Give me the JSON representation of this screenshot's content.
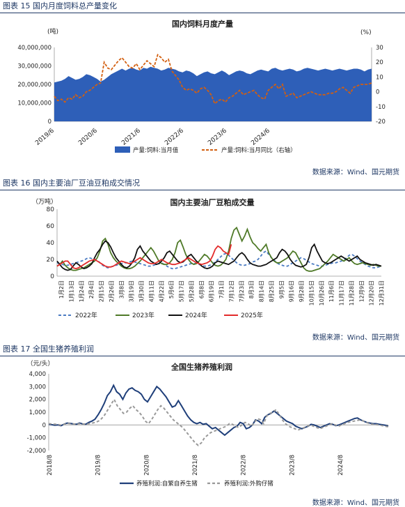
{
  "sections": [
    {
      "title": "图表 15 国内月度饲料总产量变化",
      "source": "数据来源：Wind、国元期货"
    },
    {
      "title": "图表 16 国内主要油厂豆油豆粕成交情况",
      "source": "数据来源：Wind、国元期货"
    },
    {
      "title": "图表 17 全国生猪养殖利润",
      "source": "数据来源：Wind、国元期货"
    }
  ],
  "chart_data": [
    {
      "type": "area",
      "title": "国内饲料月度产量",
      "ylabel": "(吨)",
      "y2label": "(%)",
      "ylim": [
        0,
        40000000
      ],
      "y2lim": [
        -20,
        30
      ],
      "yticks": [
        "0",
        "10,000,000",
        "20,000,000",
        "30,000,000",
        "40,000,000"
      ],
      "y2ticks": [
        "-20",
        "-10",
        "0",
        "10",
        "20",
        "30"
      ],
      "xticks": [
        "2019/6",
        "2020/6",
        "2021/6",
        "2022/6",
        "2023/6",
        "2024/6"
      ],
      "x_start": "2019/6",
      "series": [
        {
          "name": "产量:饲料:当月值",
          "kind": "area",
          "color": "#2e5fb8",
          "values": [
            21000000,
            21500000,
            22000000,
            23000000,
            24500000,
            23500000,
            22500000,
            23000000,
            24000000,
            25500000,
            25000000,
            24000000,
            23000000,
            21500000,
            22500000,
            24000000,
            25500000,
            26500000,
            27500000,
            28500000,
            27500000,
            28500000,
            29000000,
            28000000,
            27500000,
            29000000,
            28500000,
            29500000,
            29000000,
            28500000,
            27500000,
            28000000,
            29000000,
            28500000,
            28000000,
            27000000,
            26500000,
            27500000,
            27000000,
            26000000,
            24500000,
            25500000,
            26500000,
            27000000,
            26000000,
            25500000,
            26500000,
            27500000,
            26500000,
            25000000,
            26000000,
            27000000,
            27500000,
            27000000,
            26000000,
            25500000,
            26500000,
            27500000,
            28000000,
            27500000,
            27000000,
            28500000,
            29000000,
            28000000,
            27500000,
            28000000,
            28500000,
            28000000,
            27000000,
            27500000,
            28500000,
            29000000,
            28500000,
            28000000,
            27500000,
            28000000,
            28500000,
            28000000,
            27500000,
            28000000,
            28500000,
            28000000,
            27500000,
            28000000,
            28500000,
            28500000,
            28000000,
            27000000,
            28000000,
            28500000
          ]
        },
        {
          "name": "产量:饲料:当月同比（右轴）",
          "kind": "line",
          "color": "#d35f10",
          "values": [
            -3,
            -6,
            -5,
            -7,
            -4,
            -5,
            -2,
            -4,
            -3,
            0,
            1,
            3,
            5,
            6,
            20,
            16,
            15,
            18,
            21,
            23,
            20,
            17,
            16,
            19,
            15,
            18,
            21,
            19,
            17,
            25,
            23,
            20,
            22,
            14,
            11,
            8,
            3,
            1,
            2,
            1,
            -1,
            2,
            3,
            1,
            -2,
            -8,
            -6,
            -5,
            -7,
            -4,
            -3,
            -1,
            1,
            -2,
            -1,
            0,
            1,
            -2,
            -4,
            -5,
            1,
            3,
            5,
            2,
            5,
            -3,
            -2,
            -1,
            -4,
            -3,
            -2,
            -1,
            0,
            -1,
            -2,
            -2,
            -2,
            -1,
            -1,
            0,
            2,
            3,
            1,
            -1,
            3,
            4,
            5,
            5,
            5,
            6
          ]
        }
      ],
      "legend_position": "bottom"
    },
    {
      "type": "line",
      "title": "国内主要油厂豆粕成交量",
      "ylabel": "（万吨）",
      "ylim": [
        0,
        80
      ],
      "yticks": [
        "0",
        "20",
        "40",
        "60",
        "80"
      ],
      "xticks": [
        "1月2日",
        "1月13日",
        "1月24日",
        "2月4日",
        "2月15日",
        "2月26日",
        "3月8日",
        "3月19日",
        "3月30日",
        "4月11日",
        "4月22日",
        "5月6日",
        "5月17日",
        "5月28日",
        "6月8日",
        "6月19日",
        "7月1日",
        "7月12日",
        "7月23日",
        "8月3日",
        "8月14日",
        "8月25日",
        "9月5日",
        "9月16日",
        "9月28日",
        "10月15日",
        "10月26日",
        "11月6日",
        "11月17日",
        "11月28日",
        "12月9日",
        "12月20日",
        "12月31日"
      ],
      "series": [
        {
          "name": "2022年",
          "color": "#4a7bc2",
          "dash": "4,3",
          "values": [
            16,
            15,
            14,
            13,
            13,
            14,
            15,
            16,
            17,
            18,
            19,
            21,
            22,
            21,
            20,
            19,
            16,
            13,
            11,
            10,
            11,
            12,
            13,
            14,
            15,
            16,
            16,
            17,
            18,
            17,
            16,
            15,
            14,
            13,
            12,
            12,
            13,
            14,
            15,
            16,
            14,
            12,
            10,
            9,
            9,
            10,
            11,
            12,
            13,
            14,
            15,
            15,
            15,
            14,
            13,
            12,
            12,
            13,
            15,
            17,
            20,
            23,
            26,
            27,
            25,
            22,
            19,
            16,
            14,
            13,
            13,
            14,
            15,
            17,
            18,
            20,
            24,
            28,
            30,
            26,
            22,
            19,
            16,
            14,
            13,
            12,
            12,
            14,
            16,
            18,
            20,
            22,
            21,
            19,
            17,
            15,
            14,
            13,
            12,
            12,
            13,
            14,
            15,
            16,
            16,
            17,
            18,
            19,
            22,
            25,
            26,
            24,
            21,
            18,
            16,
            14,
            12,
            11,
            10,
            10,
            11,
            12
          ]
        },
        {
          "name": "2023年",
          "color": "#4f7a28",
          "values": [
            12,
            14,
            18,
            13,
            10,
            8,
            7,
            7,
            8,
            9,
            10,
            12,
            14,
            16,
            18,
            22,
            30,
            42,
            45,
            38,
            28,
            22,
            18,
            15,
            12,
            10,
            9,
            9,
            10,
            12,
            15,
            18,
            22,
            26,
            30,
            34,
            30,
            24,
            18,
            15,
            14,
            14,
            16,
            20,
            28,
            40,
            43,
            35,
            26,
            20,
            16,
            14,
            15,
            18,
            22,
            26,
            24,
            20,
            16,
            13,
            12,
            13,
            16,
            20,
            30,
            45,
            55,
            58,
            50,
            42,
            48,
            56,
            47,
            40,
            37,
            33,
            30,
            34,
            38,
            28,
            22,
            18,
            16,
            16,
            18,
            20,
            22,
            26,
            30,
            28,
            22,
            16,
            10,
            7,
            6,
            6,
            7,
            8,
            9,
            12,
            15,
            18,
            22,
            26,
            24,
            22,
            20,
            18,
            20,
            22,
            18,
            15,
            14,
            15,
            16,
            15,
            14,
            13,
            14,
            13,
            12,
            12
          ]
        },
        {
          "name": "2024年",
          "color": "#111111",
          "values": [
            18,
            14,
            10,
            8,
            7,
            8,
            12,
            16,
            14,
            11,
            9,
            10,
            12,
            15,
            22,
            28,
            32,
            38,
            42,
            40,
            35,
            28,
            22,
            18,
            14,
            11,
            10,
            12,
            16,
            22,
            32,
            36,
            30,
            26,
            22,
            18,
            16,
            14,
            15,
            18,
            22,
            28,
            30,
            26,
            22,
            18,
            16,
            17,
            20,
            24,
            26,
            22,
            18,
            15,
            12,
            10,
            9,
            10,
            12,
            16,
            18,
            17,
            16,
            15,
            14,
            16,
            18,
            22,
            26,
            28,
            25,
            20,
            16,
            14,
            13,
            12,
            12,
            13,
            14,
            16,
            18,
            20,
            22,
            28,
            32,
            30,
            26,
            20,
            16,
            13,
            12,
            11,
            12,
            14,
            22,
            34,
            38,
            30,
            24,
            18,
            16,
            15,
            16,
            18,
            20,
            22,
            24,
            22,
            20,
            18,
            20,
            22,
            24,
            20,
            18,
            16,
            15,
            14,
            13,
            14,
            13,
            12
          ]
        },
        {
          "name": "2025年",
          "color": "#e32b2b",
          "values": [
            12,
            14,
            16,
            18,
            18,
            14,
            10,
            9,
            10,
            12,
            14,
            16,
            18,
            19,
            20,
            18,
            16,
            14,
            12,
            11,
            11,
            12,
            14,
            16,
            18,
            17,
            16,
            15,
            16,
            18,
            20,
            22,
            20,
            18,
            16,
            15,
            15,
            16,
            18,
            20,
            18,
            16,
            15,
            14,
            14,
            15,
            16,
            18,
            20,
            22,
            20,
            18,
            16,
            15,
            14,
            15,
            16,
            18,
            24,
            32,
            36,
            34,
            30,
            28,
            26,
            38
          ]
        }
      ],
      "legend_position": "bottom"
    },
    {
      "type": "line",
      "title": "全国生猪养殖利润",
      "ylabel": "（元/头）",
      "ylim": [
        -2000,
        4000
      ],
      "yticks": [
        "-2,000",
        "-1,000",
        "0",
        "1,000",
        "2,000",
        "3,000",
        "4,000"
      ],
      "xticks": [
        "2018/8",
        "2019/8",
        "2020/8",
        "2021/8",
        "2022/8",
        "2023/8",
        "2024/8"
      ],
      "x_start": "2018/8",
      "series": [
        {
          "name": "养殖利润:自繁自养生猪",
          "color": "#1f3f7a",
          "values": [
            50,
            20,
            -20,
            0,
            -60,
            60,
            150,
            120,
            80,
            50,
            150,
            80,
            50,
            200,
            300,
            450,
            800,
            1200,
            1700,
            2300,
            2600,
            3100,
            2600,
            2400,
            2000,
            2500,
            2800,
            2900,
            2700,
            2600,
            2400,
            2000,
            1800,
            2200,
            2600,
            3000,
            2800,
            2500,
            2200,
            1800,
            1400,
            1500,
            1900,
            1500,
            1100,
            700,
            400,
            200,
            100,
            200,
            50,
            100,
            -100,
            -300,
            -200,
            -400,
            -600,
            -800,
            -600,
            -400,
            -200,
            -100,
            200,
            100,
            -300,
            -200,
            0,
            400,
            300,
            100,
            600,
            800,
            900,
            1100,
            900,
            700,
            500,
            300,
            200,
            100,
            -100,
            -200,
            -300,
            -200,
            -100,
            50,
            0,
            -100,
            -200,
            -100,
            0,
            100,
            50,
            -50,
            0,
            100,
            200,
            300,
            400,
            500,
            550,
            400,
            300,
            200,
            150,
            100,
            100,
            50,
            20,
            -20,
            -100
          ]
        },
        {
          "name": "养殖利润:外购仔猪",
          "color": "#999999",
          "dash": "4,3",
          "values": [
            100,
            80,
            60,
            40,
            -20,
            50,
            120,
            100,
            80,
            60,
            100,
            80,
            60,
            100,
            150,
            200,
            300,
            500,
            800,
            1200,
            1600,
            2000,
            1500,
            1200,
            900,
            1000,
            1300,
            1500,
            1200,
            1000,
            700,
            300,
            100,
            400,
            800,
            1200,
            1500,
            1300,
            1000,
            700,
            400,
            200,
            0,
            -200,
            -500,
            -800,
            -1100,
            -1400,
            -1600,
            -1400,
            -1000,
            -800,
            -600,
            -500,
            -400,
            -300,
            -200,
            -100,
            100,
            50,
            -100,
            -200,
            0,
            200,
            100,
            -100,
            200,
            500,
            400,
            100,
            700,
            900,
            1000,
            1200,
            800,
            400,
            100,
            -100,
            -200,
            -300,
            -400,
            -300,
            -200,
            -100,
            0,
            -100,
            -200,
            -300,
            -200,
            -100,
            0,
            100,
            0,
            -100,
            0,
            100,
            200,
            250,
            300,
            350,
            400,
            300,
            200,
            100,
            50,
            30,
            0,
            -50,
            -100,
            -150
          ]
        }
      ],
      "legend_position": "bottom"
    }
  ]
}
